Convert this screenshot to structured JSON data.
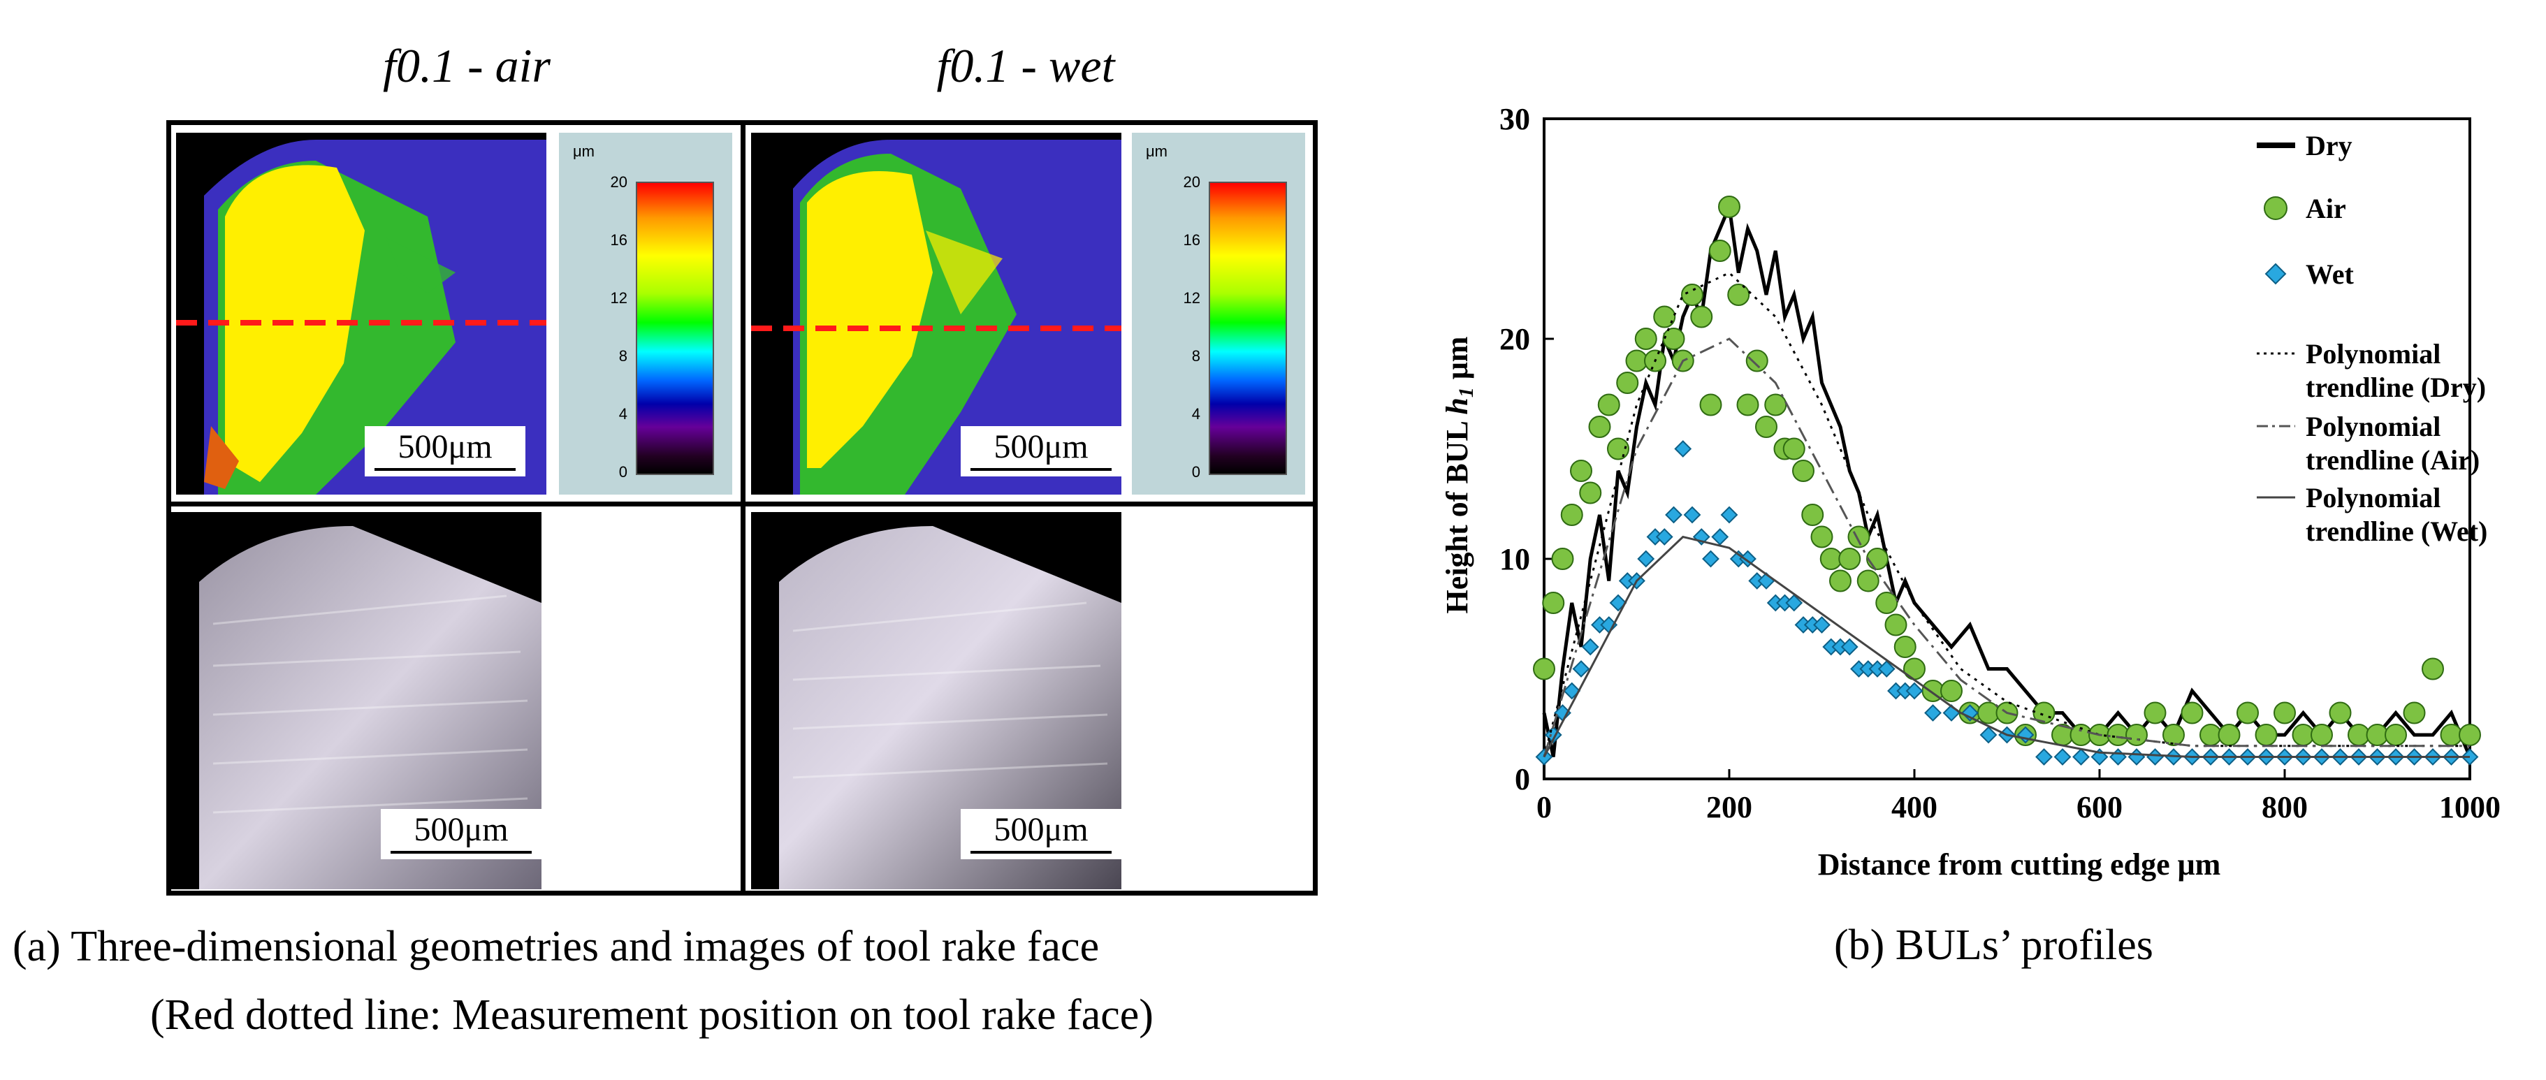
{
  "left_figure": {
    "col_titles": [
      "f0.1 - air",
      "f0.1 - wet"
    ],
    "colorbar_unit": "μm",
    "colorbar_ticks": [
      "20",
      "16",
      "12",
      "8",
      "4",
      "0"
    ],
    "scale_label": "500μm",
    "caption_line1": "(a) Three-dimensional geometries and images of tool rake face",
    "caption_line2": "(Red dotted line: Measurement position on tool rake face)"
  },
  "right_caption": "(b) BULs’ profiles",
  "chart_data": {
    "type": "scatter",
    "xlabel": "Distance from cutting edge μm",
    "ylabel_main": "Height of BUL ",
    "ylabel_italic": "h",
    "ylabel_sub": "1",
    "ylabel_unit": " μm",
    "xlim": [
      0,
      1000
    ],
    "ylim": [
      0,
      30
    ],
    "x_ticks": [
      0,
      200,
      400,
      600,
      800,
      1000
    ],
    "y_ticks": [
      0,
      10,
      20,
      30
    ],
    "legend_position": "top-right",
    "legend": [
      {
        "label": "Dry",
        "marker": "thick-line",
        "color": "#000000"
      },
      {
        "label": "Air",
        "marker": "circle",
        "color": "#7dc242"
      },
      {
        "label": "Wet",
        "marker": "diamond",
        "color": "#29a8e0"
      },
      {
        "label": "Polynomial trendline (Dry)",
        "lines": [
          "Polynomial",
          "trendline (Dry)"
        ],
        "marker": "dotted",
        "color": "#000000"
      },
      {
        "label": "Polynomial trendline (Air)",
        "lines": [
          "Polynomial",
          "trendline (Air)"
        ],
        "marker": "dashdot",
        "color": "#555555"
      },
      {
        "label": "Polynomial trendline (Wet)",
        "lines": [
          "Polynomial",
          "trendline (Wet)"
        ],
        "marker": "solid-thin",
        "color": "#444444"
      }
    ],
    "series": [
      {
        "name": "Dry",
        "type": "line",
        "x": [
          0,
          10,
          20,
          30,
          40,
          50,
          60,
          70,
          80,
          90,
          100,
          110,
          120,
          130,
          140,
          150,
          160,
          170,
          180,
          190,
          200,
          210,
          220,
          230,
          240,
          250,
          260,
          270,
          280,
          290,
          300,
          310,
          320,
          330,
          340,
          350,
          360,
          370,
          380,
          390,
          400,
          420,
          440,
          460,
          480,
          500,
          520,
          540,
          560,
          580,
          600,
          620,
          640,
          660,
          680,
          700,
          720,
          740,
          760,
          780,
          800,
          820,
          840,
          860,
          880,
          900,
          920,
          940,
          960,
          980,
          1000
        ],
        "y": [
          3,
          1,
          5,
          8,
          6,
          10,
          12,
          9,
          14,
          13,
          16,
          18,
          17,
          20,
          19,
          21,
          22,
          21,
          24,
          25,
          26,
          23,
          25,
          24,
          22,
          24,
          21,
          22,
          20,
          21,
          18,
          17,
          16,
          14,
          13,
          11,
          12,
          10,
          8,
          9,
          8,
          7,
          6,
          7,
          5,
          5,
          4,
          3,
          3,
          2,
          2,
          3,
          2,
          3,
          2,
          4,
          3,
          2,
          3,
          2,
          2,
          3,
          2,
          3,
          2,
          2,
          3,
          2,
          2,
          3,
          1
        ]
      },
      {
        "name": "Air",
        "type": "scatter",
        "x": [
          0,
          10,
          20,
          30,
          40,
          50,
          60,
          70,
          80,
          90,
          100,
          110,
          120,
          130,
          140,
          150,
          160,
          170,
          180,
          190,
          200,
          210,
          220,
          230,
          240,
          250,
          260,
          270,
          280,
          290,
          300,
          310,
          320,
          330,
          340,
          350,
          360,
          370,
          380,
          390,
          400,
          420,
          440,
          460,
          480,
          500,
          520,
          540,
          560,
          580,
          600,
          620,
          640,
          660,
          680,
          700,
          720,
          740,
          760,
          780,
          800,
          820,
          840,
          860,
          880,
          900,
          920,
          940,
          960,
          980,
          1000
        ],
        "y": [
          5,
          8,
          10,
          12,
          14,
          13,
          16,
          17,
          15,
          18,
          19,
          20,
          19,
          21,
          20,
          19,
          22,
          21,
          17,
          24,
          26,
          22,
          17,
          19,
          16,
          17,
          15,
          15,
          14,
          12,
          11,
          10,
          9,
          10,
          11,
          9,
          10,
          8,
          7,
          6,
          5,
          4,
          4,
          3,
          3,
          3,
          2,
          3,
          2,
          2,
          2,
          2,
          2,
          3,
          2,
          3,
          2,
          2,
          3,
          2,
          3,
          2,
          2,
          3,
          2,
          2,
          2,
          3,
          5,
          2,
          2
        ]
      },
      {
        "name": "Wet",
        "type": "scatter",
        "x": [
          0,
          10,
          20,
          30,
          40,
          50,
          60,
          70,
          80,
          90,
          100,
          110,
          120,
          130,
          140,
          150,
          160,
          170,
          180,
          190,
          200,
          210,
          220,
          230,
          240,
          250,
          260,
          270,
          280,
          290,
          300,
          310,
          320,
          330,
          340,
          350,
          360,
          370,
          380,
          390,
          400,
          420,
          440,
          460,
          480,
          500,
          520,
          540,
          560,
          580,
          600,
          620,
          640,
          660,
          680,
          700,
          720,
          740,
          760,
          780,
          800,
          820,
          840,
          860,
          880,
          900,
          920,
          940,
          960,
          980,
          1000
        ],
        "y": [
          1,
          2,
          3,
          4,
          5,
          6,
          7,
          7,
          8,
          9,
          9,
          10,
          11,
          11,
          12,
          15,
          12,
          11,
          10,
          11,
          12,
          10,
          10,
          9,
          9,
          8,
          8,
          8,
          7,
          7,
          7,
          6,
          6,
          6,
          5,
          5,
          5,
          5,
          4,
          4,
          4,
          3,
          3,
          3,
          2,
          2,
          2,
          1,
          1,
          1,
          1,
          1,
          1,
          1,
          1,
          1,
          1,
          1,
          1,
          1,
          1,
          1,
          1,
          1,
          1,
          1,
          1,
          1,
          1,
          1,
          1
        ]
      },
      {
        "name": "Polynomial trendline (Dry)",
        "type": "trend",
        "x": [
          0,
          50,
          100,
          150,
          200,
          250,
          300,
          350,
          400,
          450,
          500,
          600,
          700,
          800,
          900,
          1000
        ],
        "y": [
          1,
          9,
          17,
          22,
          23,
          21,
          17,
          12,
          8,
          5,
          3.5,
          2,
          1.5,
          1.5,
          1.5,
          1.5
        ]
      },
      {
        "name": "Polynomial trendline (Air)",
        "type": "trend",
        "x": [
          0,
          50,
          100,
          150,
          200,
          250,
          300,
          350,
          400,
          450,
          500,
          600,
          700,
          800,
          900,
          1000
        ],
        "y": [
          1,
          8,
          15,
          19,
          20,
          18,
          14,
          10,
          7,
          4.5,
          3,
          2,
          1.5,
          1.5,
          1.5,
          1.5
        ]
      },
      {
        "name": "Polynomial trendline (Wet)",
        "type": "trend",
        "x": [
          0,
          50,
          100,
          150,
          200,
          250,
          300,
          350,
          400,
          450,
          500,
          600,
          700,
          800,
          900,
          1000
        ],
        "y": [
          1,
          5,
          9,
          11,
          10.5,
          9,
          7.5,
          6,
          4.5,
          3,
          2,
          1.2,
          1,
          1,
          1,
          1
        ]
      }
    ]
  }
}
